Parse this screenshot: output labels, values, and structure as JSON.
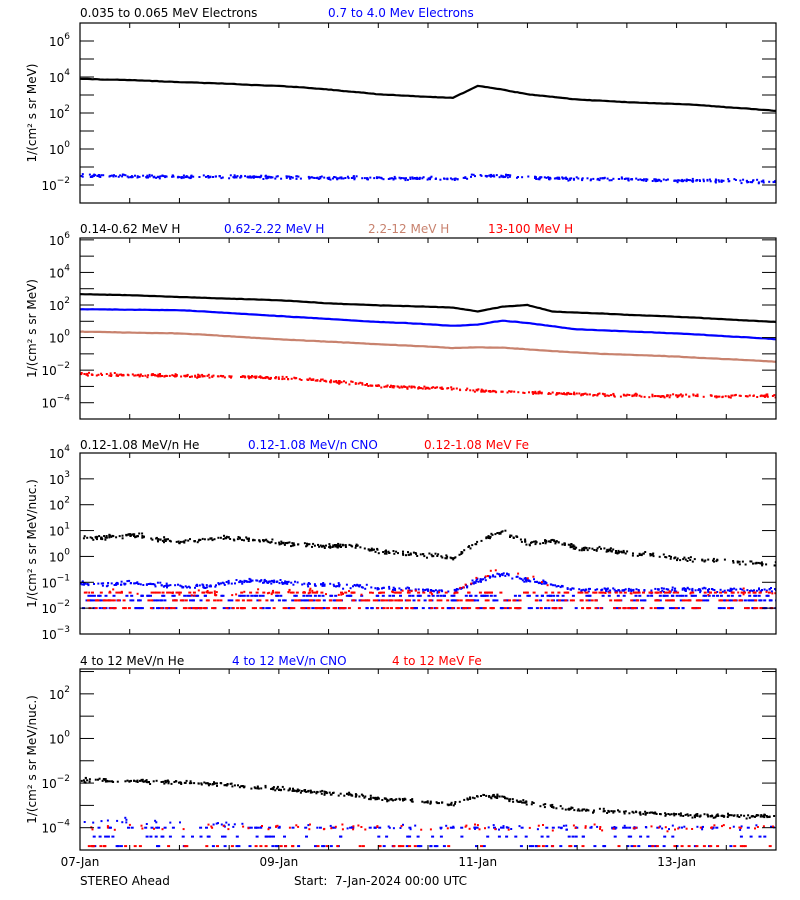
{
  "footer": {
    "spacecraft": "STEREO Ahead",
    "start": "Start:  7-Jan-2024 00:00 UTC"
  },
  "colors": {
    "black": "#000000",
    "blue": "#0000ff",
    "brown": "#c8826e",
    "red": "#ff0000"
  },
  "chart_data": [
    {
      "type": "scatter",
      "ylabel": "1/(cm² s sr MeV)",
      "yscale": "log",
      "ylim": [
        0.001,
        10000000.0
      ],
      "y_ticks": [
        0.01,
        1,
        100,
        10000,
        1000000
      ],
      "x_range": [
        "2024-01-07T00:00",
        "2024-01-14T00:00"
      ],
      "x": [
        "2024-01-07T00:00",
        "2024-01-07T06:00",
        "2024-01-07T12:00",
        "2024-01-07T18:00",
        "2024-01-08T00:00",
        "2024-01-08T06:00",
        "2024-01-08T12:00",
        "2024-01-08T18:00",
        "2024-01-09T00:00",
        "2024-01-09T06:00",
        "2024-01-09T12:00",
        "2024-01-09T18:00",
        "2024-01-10T00:00",
        "2024-01-10T06:00",
        "2024-01-10T12:00",
        "2024-01-10T18:00",
        "2024-01-11T00:00",
        "2024-01-11T06:00",
        "2024-01-11T12:00",
        "2024-01-11T18:00",
        "2024-01-12T00:00",
        "2024-01-12T06:00",
        "2024-01-12T12:00",
        "2024-01-12T18:00",
        "2024-01-13T00:00",
        "2024-01-13T06:00",
        "2024-01-13T12:00",
        "2024-01-13T18:00",
        "2024-01-14T00:00"
      ],
      "series": [
        {
          "name": "0.035 to 0.065 MeV Electrons",
          "color": "#000000",
          "style": "line",
          "values": [
            7900,
            7200,
            6800,
            5900,
            5200,
            4700,
            4200,
            3600,
            3200,
            2600,
            2000,
            1500,
            1100,
            930,
            790,
            690,
            3200,
            2000,
            1100,
            790,
            560,
            480,
            400,
            350,
            320,
            270,
            210,
            170,
            130
          ]
        },
        {
          "name": "0.7 to 4.0 Mev Electrons",
          "color": "#0000ff",
          "style": "scatter",
          "values": [
            0.032,
            0.031,
            0.03,
            0.03,
            0.029,
            0.028,
            0.028,
            0.027,
            0.026,
            0.026,
            0.025,
            0.024,
            0.024,
            0.023,
            0.023,
            0.022,
            0.035,
            0.03,
            0.026,
            0.024,
            0.022,
            0.021,
            0.02,
            0.019,
            0.018,
            0.018,
            0.017,
            0.016,
            0.015
          ]
        }
      ]
    },
    {
      "type": "scatter",
      "ylabel": "1/(cm² s sr MeV)",
      "yscale": "log",
      "ylim": [
        1e-05,
        1300000
      ],
      "y_ticks": [
        0.0001,
        0.01,
        1,
        100,
        10000,
        1000000
      ],
      "x_range": [
        "2024-01-07T00:00",
        "2024-01-14T00:00"
      ],
      "series": [
        {
          "name": "0.14-0.62 MeV H",
          "color": "#000000",
          "style": "line",
          "values": [
            460,
            430,
            400,
            350,
            310,
            275,
            245,
            220,
            195,
            160,
            125,
            110,
            95,
            87,
            79,
            69,
            40,
            79,
            100,
            40,
            34,
            30,
            25,
            22,
            19,
            16,
            13,
            11,
            9.1
          ]
        },
        {
          "name": "0.62-2.22 MeV H",
          "color": "#0000ff",
          "style": "line",
          "values": [
            55,
            54,
            51,
            50,
            48,
            40,
            32,
            26,
            21,
            17,
            14,
            11,
            9.1,
            7.9,
            6.6,
            5.2,
            6.3,
            11,
            7.9,
            5,
            3.2,
            2.8,
            2.4,
            2.1,
            1.8,
            1.5,
            1.2,
            1.0,
            0.79
          ]
        },
        {
          "name": "2.2-12 MeV H",
          "color": "#c8826e",
          "style": "line",
          "values": [
            2.3,
            2.2,
            2.0,
            1.9,
            1.8,
            1.5,
            1.2,
            0.98,
            0.79,
            0.66,
            0.56,
            0.47,
            0.39,
            0.33,
            0.28,
            0.23,
            0.25,
            0.24,
            0.19,
            0.15,
            0.12,
            0.1,
            0.089,
            0.078,
            0.068,
            0.056,
            0.048,
            0.04,
            0.033
          ]
        },
        {
          "name": "13-100 MeV H",
          "color": "#ff0000",
          "style": "scatter",
          "values": [
            0.0056,
            0.0053,
            0.005,
            0.0047,
            0.0045,
            0.0042,
            0.004,
            0.0037,
            0.0033,
            0.0027,
            0.0021,
            0.0016,
            0.001,
            0.0009,
            0.0008,
            0.0007,
            0.00055,
            0.00048,
            0.00042,
            0.00037,
            0.00033,
            0.0003,
            0.00028,
            0.00026,
            0.00026,
            0.00026,
            0.00025,
            0.00025,
            0.00025
          ]
        }
      ]
    },
    {
      "type": "scatter",
      "ylabel": "1/(cm² s sr MeV/nuc.)",
      "yscale": "log",
      "ylim": [
        0.001,
        10000
      ],
      "y_ticks": [
        0.001,
        0.01,
        0.1,
        1,
        10,
        100,
        1000,
        10000
      ],
      "x_range": [
        "2024-01-07T00:00",
        "2024-01-14T00:00"
      ],
      "series": [
        {
          "name": "0.12-1.08 MeV/n He",
          "color": "#000000",
          "style": "scatter",
          "values": [
            5,
            5.5,
            7,
            5,
            3.5,
            4.5,
            5.3,
            4.5,
            3.2,
            2.8,
            2.4,
            2.6,
            1.5,
            1.3,
            1.15,
            0.85,
            3.8,
            9,
            3.2,
            4,
            2.1,
            1.9,
            1.35,
            1.1,
            0.85,
            0.75,
            0.63,
            0.55,
            0.48
          ]
        },
        {
          "name": "0.12-1.08 MeV/n CNO",
          "color": "#0000ff",
          "style": "scatter",
          "values": [
            0.09,
            0.08,
            0.1,
            0.08,
            0.07,
            0.07,
            0.1,
            0.12,
            0.1,
            0.09,
            0.08,
            0.07,
            0.06,
            0.055,
            0.05,
            0.045,
            0.12,
            0.22,
            0.12,
            0.08,
            0.05,
            0.05,
            0.05,
            0.05,
            0.05,
            0.05,
            0.05,
            0.05,
            0.05
          ],
          "floor_levels": [
            0.03,
            0.02,
            0.01
          ]
        },
        {
          "name": "0.12-1.08 MeV Fe",
          "color": "#ff0000",
          "style": "sparse",
          "values": [
            0.04,
            0.04,
            0.04,
            0.04,
            0.04,
            0.04,
            0.04,
            0.04,
            0.04,
            0.04,
            0.04,
            0.04,
            0.04,
            0.04,
            0.04,
            0.04,
            0.15,
            0.35,
            0.15,
            0.06,
            0.04,
            0.04,
            0.04,
            0.04,
            0.04,
            0.04,
            0.04,
            0.04,
            0.04
          ],
          "floor_levels": [
            0.04,
            0.02,
            0.01
          ]
        }
      ]
    },
    {
      "type": "scatter",
      "ylabel": "1/(cm² s sr MeV/nuc.)",
      "yscale": "log",
      "ylim": [
        1e-05,
        1300
      ],
      "y_ticks": [
        0.0001,
        0.01,
        1,
        100
      ],
      "x_range": [
        "2024-01-07T00:00",
        "2024-01-14T00:00"
      ],
      "x_ticks": [
        "2024-01-07T00:00",
        "2024-01-09T00:00",
        "2024-01-11T00:00",
        "2024-01-13T00:00"
      ],
      "x_tick_labels": [
        "07-Jan",
        "09-Jan",
        "11-Jan",
        "13-Jan"
      ],
      "series": [
        {
          "name": "4 to 12 MeV/n He",
          "color": "#000000",
          "style": "scatter",
          "values": [
            0.0135,
            0.013,
            0.012,
            0.0115,
            0.011,
            0.0095,
            0.008,
            0.0065,
            0.0054,
            0.0045,
            0.0035,
            0.0027,
            0.002,
            0.0017,
            0.0014,
            0.0011,
            0.003,
            0.0022,
            0.00126,
            0.0009,
            0.00063,
            0.00055,
            0.0005,
            0.00045,
            0.00038,
            0.00035,
            0.00034,
            0.00033,
            0.00032
          ]
        },
        {
          "name": "4 to 12 MeV/n CNO",
          "color": "#0000ff",
          "style": "sparse",
          "values": [
            0.0002,
            0.0002,
            0.00018,
            0.00017,
            0.00016,
            0.00015,
            0.00014,
            0.00013,
            0.00012,
            0.00011,
            0.0001,
            0.0001,
            0.0001,
            0.0001,
            0.0001,
            0.0001,
            0.0001,
            0.0001,
            0.0001,
            0.0001,
            0.0001,
            0.0001,
            0.0001,
            0.0001,
            0.0001,
            0.0001,
            0.0001,
            0.0001,
            0.0001
          ],
          "floor_levels": [
            0.0001,
            4e-05,
            1.5e-05
          ]
        },
        {
          "name": "4 to 12 MeV Fe",
          "color": "#ff0000",
          "style": "sparse",
          "values": [
            0.0001,
            0.0001,
            0.0001,
            0.0001,
            0.0001,
            0.0001,
            0.0001,
            0.0001,
            0.0001,
            0.0001,
            0.0001,
            0.0001,
            0.0001,
            0.0001,
            0.0001,
            0.0001,
            0.0001,
            0.0001,
            0.0001,
            0.0001,
            0.0001,
            0.0001,
            0.0001,
            0.0001,
            0.0001,
            0.0001,
            0.0001,
            0.0001,
            0.0001
          ],
          "floor_levels": [
            1.5e-05
          ]
        }
      ]
    }
  ]
}
